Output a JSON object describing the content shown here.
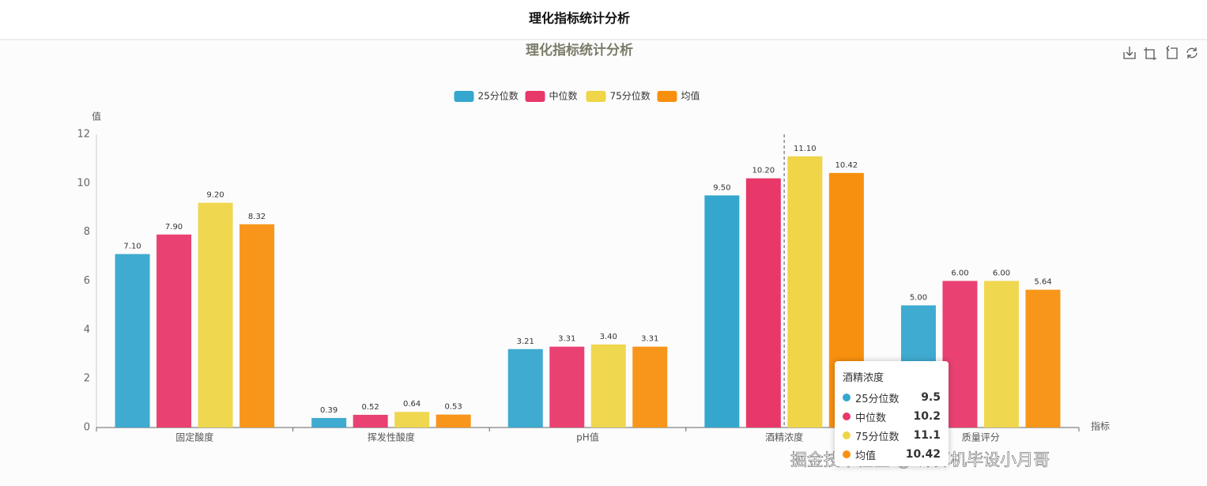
{
  "header": {
    "title": "理化指标统计分析"
  },
  "watermark": "掘金技术社区 @ 计算机毕设小月哥",
  "chart_data": {
    "type": "bar",
    "title": "理化指标统计分析",
    "ylabel": "值",
    "xlabel": "指标",
    "categories": [
      "固定酸度",
      "挥发性酸度",
      "pH值",
      "酒精浓度",
      "质量评分"
    ],
    "series": [
      {
        "name": "25分位数",
        "color": "#35a7cf",
        "values": [
          7.1,
          0.39,
          3.21,
          9.5,
          5.0
        ],
        "value_labels": [
          "7.10",
          "0.39",
          "3.21",
          "9.50",
          "5.00"
        ]
      },
      {
        "name": "中位数",
        "color": "#e8386a",
        "values": [
          7.9,
          0.52,
          3.31,
          10.2,
          6.0
        ],
        "value_labels": [
          "7.90",
          "0.52",
          "3.31",
          "10.20",
          "6.00"
        ]
      },
      {
        "name": "75分位数",
        "color": "#efd547",
        "values": [
          9.2,
          0.64,
          3.4,
          11.1,
          6.0
        ],
        "value_labels": [
          "9.20",
          "0.64",
          "3.40",
          "11.10",
          "6.00"
        ]
      },
      {
        "name": "均值",
        "color": "#f8900f",
        "values": [
          8.32,
          0.53,
          3.31,
          10.42,
          5.64
        ],
        "value_labels": [
          "8.32",
          "0.53",
          "3.31",
          "10.42",
          "5.64"
        ]
      }
    ],
    "ylim": [
      0,
      12
    ],
    "yticks": [
      0,
      2,
      4,
      6,
      8,
      10,
      12
    ],
    "tooltip": {
      "category": "酒精浓度"
    }
  }
}
